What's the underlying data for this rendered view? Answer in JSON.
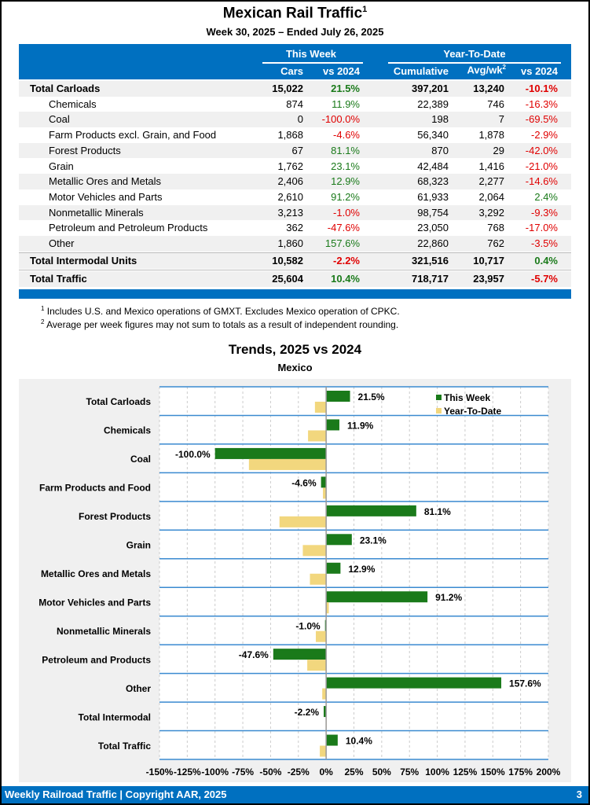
{
  "title": "Mexican Rail Traffic",
  "title_sup": "1",
  "subtitle": "Week 30, 2025 – Ended July 26, 2025",
  "table": {
    "group_this_week": "This Week",
    "group_ytd": "Year-To-Date",
    "columns": [
      "Cars",
      "vs 2024",
      "Cumulative",
      "Avg/wk",
      "vs 2024"
    ],
    "avg_sup": "2",
    "rows": [
      {
        "label": "Total Carloads",
        "cars": "15,022",
        "vs": "21.5%",
        "cum": "397,201",
        "avg": "13,240",
        "ytd_vs": "-10.1%",
        "total": true
      },
      {
        "label": "Chemicals",
        "cars": "874",
        "vs": "11.9%",
        "cum": "22,389",
        "avg": "746",
        "ytd_vs": "-16.3%"
      },
      {
        "label": "Coal",
        "cars": "0",
        "vs": "-100.0%",
        "cum": "198",
        "avg": "7",
        "ytd_vs": "-69.5%"
      },
      {
        "label": "Farm Products excl. Grain, and Food",
        "cars": "1,868",
        "vs": "-4.6%",
        "cum": "56,340",
        "avg": "1,878",
        "ytd_vs": "-2.9%"
      },
      {
        "label": "Forest Products",
        "cars": "67",
        "vs": "81.1%",
        "cum": "870",
        "avg": "29",
        "ytd_vs": "-42.0%"
      },
      {
        "label": "Grain",
        "cars": "1,762",
        "vs": "23.1%",
        "cum": "42,484",
        "avg": "1,416",
        "ytd_vs": "-21.0%"
      },
      {
        "label": "Metallic Ores and Metals",
        "cars": "2,406",
        "vs": "12.9%",
        "cum": "68,323",
        "avg": "2,277",
        "ytd_vs": "-14.6%"
      },
      {
        "label": "Motor Vehicles and Parts",
        "cars": "2,610",
        "vs": "91.2%",
        "cum": "61,933",
        "avg": "2,064",
        "ytd_vs": "2.4%"
      },
      {
        "label": "Nonmetallic Minerals",
        "cars": "3,213",
        "vs": "-1.0%",
        "cum": "98,754",
        "avg": "3,292",
        "ytd_vs": "-9.3%"
      },
      {
        "label": "Petroleum and Petroleum Products",
        "cars": "362",
        "vs": "-47.6%",
        "cum": "23,050",
        "avg": "768",
        "ytd_vs": "-17.0%"
      },
      {
        "label": "Other",
        "cars": "1,860",
        "vs": "157.6%",
        "cum": "22,860",
        "avg": "762",
        "ytd_vs": "-3.5%"
      },
      {
        "label": "Total Intermodal Units",
        "cars": "10,582",
        "vs": "-2.2%",
        "cum": "321,516",
        "avg": "10,717",
        "ytd_vs": "0.4%",
        "total": true
      },
      {
        "label": "Total Traffic",
        "cars": "25,604",
        "vs": "10.4%",
        "cum": "718,717",
        "avg": "23,957",
        "ytd_vs": "-5.7%",
        "total": true
      }
    ]
  },
  "footnotes": [
    {
      "sup": "1",
      "text": "Includes U.S. and Mexico operations of GMXT. Excludes Mexico operation of CPKC."
    },
    {
      "sup": "2",
      "text": "Average per week figures may not sum to totals as a result of independent rounding."
    }
  ],
  "colors": {
    "header": "#0070c0",
    "positive": "#1a7a1a",
    "negative": "#e00000",
    "this_week": "#1a7a1a",
    "ytd": "#f2d77e"
  },
  "chart_data": {
    "type": "bar",
    "orientation": "horizontal",
    "title": "Trends, 2025 vs 2024",
    "subtitle": "Mexico",
    "categories": [
      "Total Carloads",
      "Chemicals",
      "Coal",
      "Farm Products and Food",
      "Forest Products",
      "Grain",
      "Metallic Ores and Metals",
      "Motor Vehicles and Parts",
      "Nonmetallic Minerals",
      "Petroleum and Products",
      "Other",
      "Total Intermodal",
      "Total Traffic"
    ],
    "series": [
      {
        "name": "This Week",
        "values": [
          21.5,
          11.9,
          -100.0,
          -4.6,
          81.1,
          23.1,
          12.9,
          91.2,
          -1.0,
          -47.6,
          157.6,
          -2.2,
          10.4
        ],
        "labels": [
          "21.5%",
          "11.9%",
          "-100.0%",
          "-4.6%",
          "81.1%",
          "23.1%",
          "12.9%",
          "91.2%",
          "-1.0%",
          "-47.6%",
          "157.6%",
          "-2.2%",
          "10.4%"
        ]
      },
      {
        "name": "Year-To-Date",
        "values": [
          -10.1,
          -16.3,
          -69.5,
          -2.9,
          -42.0,
          -21.0,
          -14.6,
          2.4,
          -9.3,
          -17.0,
          -3.5,
          0.4,
          -5.7
        ]
      }
    ],
    "xlim": [
      -150,
      200
    ],
    "xticks": [
      "-150%",
      "-125%",
      "-100%",
      "-75%",
      "-50%",
      "-25%",
      "0%",
      "25%",
      "50%",
      "75%",
      "100%",
      "125%",
      "150%",
      "175%",
      "200%"
    ],
    "legend": "top-right",
    "grid": true
  },
  "footer": {
    "left": "Weekly Railroad Traffic | Copyright AAR, 2025",
    "page": "3"
  }
}
